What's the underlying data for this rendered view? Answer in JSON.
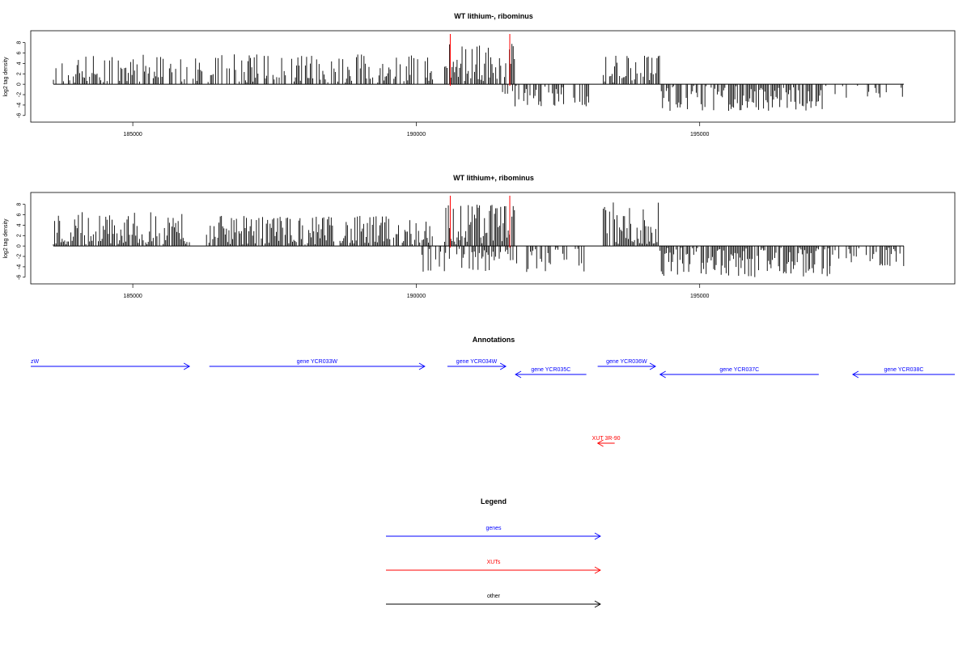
{
  "chart_data": [
    {
      "type": "bar",
      "title": "WT lithium-, ribominus",
      "xlabel": "",
      "ylabel": "log2 tag density",
      "xlim": [
        183200,
        199500
      ],
      "ylim": [
        -6.5,
        9.5
      ],
      "x_ticks": [
        185000,
        190000,
        195000
      ],
      "x_tick_labels": [
        "185000",
        "190000",
        "195000"
      ],
      "y_ticks": [
        8,
        6,
        4,
        2,
        0,
        -2,
        -4,
        -6
      ],
      "y_tick_labels": [
        "8",
        "6",
        "4",
        "2",
        "0",
        "-2",
        "-4",
        "-6"
      ],
      "series": [
        {
          "values": [
            {
              "from": 183600,
              "to": 190300,
              "strand": "+",
              "max": 5.8,
              "density": 0.7
            },
            {
              "from": 190500,
              "to": 191750,
              "strand": "+",
              "max": 7.8,
              "density": 1.0
            },
            {
              "from": 191500,
              "to": 193100,
              "strand": "-",
              "max": -4.5,
              "density": 0.6
            },
            {
              "from": 193300,
              "to": 194300,
              "strand": "+",
              "max": 5.8,
              "density": 0.9
            },
            {
              "from": 194300,
              "to": 197300,
              "strand": "-",
              "max": -5.2,
              "density": 0.85
            },
            {
              "from": 197300,
              "to": 198600,
              "strand": "-",
              "max": -2.6,
              "density": 0.2
            }
          ]
        }
      ],
      "highlight_markers": [
        190600,
        191650
      ],
      "grid": false,
      "legend": "none"
    },
    {
      "type": "bar",
      "title": "WT lithium+, ribominus",
      "xlabel": "",
      "ylabel": "log2 tag density",
      "xlim": [
        183200,
        199500
      ],
      "ylim": [
        -6.5,
        9.5
      ],
      "x_ticks": [
        185000,
        190000,
        195000
      ],
      "x_tick_labels": [
        "185000",
        "190000",
        "195000"
      ],
      "y_ticks": [
        8,
        6,
        4,
        2,
        0,
        -2,
        -4,
        -6
      ],
      "y_tick_labels": [
        "8",
        "6",
        "4",
        "2",
        "0",
        "-2",
        "-4",
        "-6"
      ],
      "series": [
        {
          "values": [
            {
              "from": 183600,
              "to": 186000,
              "strand": "+",
              "max": 6.5,
              "density": 1.0
            },
            {
              "from": 186300,
              "to": 190300,
              "strand": "+",
              "max": 5.8,
              "density": 1.0
            },
            {
              "from": 190500,
              "to": 191750,
              "strand": "+",
              "max": 8.2,
              "density": 1.0
            },
            {
              "from": 190100,
              "to": 193000,
              "strand": "-",
              "max": -5.0,
              "density": 0.6
            },
            {
              "from": 193300,
              "to": 194300,
              "strand": "+",
              "max": 8.4,
              "density": 1.0
            },
            {
              "from": 194300,
              "to": 197300,
              "strand": "-",
              "max": -6.0,
              "density": 1.0
            },
            {
              "from": 197300,
              "to": 198600,
              "strand": "-",
              "max": -4.0,
              "density": 0.5
            }
          ]
        }
      ],
      "highlight_markers": [
        190600,
        191650
      ],
      "grid": false,
      "legend": "none"
    }
  ],
  "colors": {
    "bars": "#000000",
    "marker": "#ff0000",
    "genes": "#0000ff",
    "xuts": "#ff0000",
    "other": "#000000",
    "axis": "#000000"
  },
  "annotations": {
    "title": "Annotations",
    "items": [
      {
        "label": "zW",
        "kind": "genes",
        "strand": "+",
        "from": 183200,
        "to": 186000
      },
      {
        "label": "gene YCR033W",
        "kind": "genes",
        "strand": "+",
        "from": 186350,
        "to": 190150
      },
      {
        "label": "gene YCR034W",
        "kind": "genes",
        "strand": "+",
        "from": 190550,
        "to": 191580
      },
      {
        "label": "gene YCR035C",
        "kind": "genes",
        "strand": "-",
        "from": 191750,
        "to": 193000
      },
      {
        "label": "gene YCR036W",
        "kind": "genes",
        "strand": "+",
        "from": 193200,
        "to": 194220
      },
      {
        "label": "gene YCR037C",
        "kind": "genes",
        "strand": "-",
        "from": 194300,
        "to": 197100
      },
      {
        "label": "gene YCR038C",
        "kind": "genes",
        "strand": "-",
        "from": 197700,
        "to": 199500
      },
      {
        "label": "XUT 3R-90",
        "kind": "xuts",
        "strand": "-",
        "from": 193200,
        "to": 193500
      }
    ]
  },
  "legend": {
    "title": "Legend",
    "items": [
      {
        "label": "genes",
        "kind": "genes"
      },
      {
        "label": "XUTs",
        "kind": "xuts"
      },
      {
        "label": "other",
        "kind": "other"
      }
    ]
  }
}
